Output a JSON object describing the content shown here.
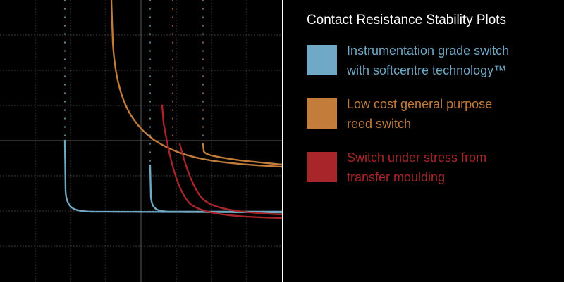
{
  "title": "Contact Resistance Stability Plots",
  "legend": [
    {
      "lines": [
        "Instrumentation grade switch",
        "with softcentre technology™"
      ],
      "color": "#6fa9c6"
    },
    {
      "lines": [
        "Low cost general purpose",
        "reed switch"
      ],
      "color": "#c37c3a"
    },
    {
      "lines": [
        "Switch under stress from",
        "transfer moulding"
      ],
      "color": "#a82529"
    }
  ]
}
